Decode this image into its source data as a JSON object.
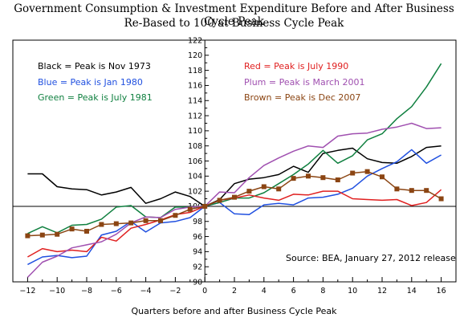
{
  "chart_data": {
    "type": "line",
    "title": "Government Consumption & Investment Expenditure Before and After Business Cycle Peak",
    "subtitle": "Re-Based to 100 at Business Cycle Peak",
    "xlabel": "Quarters before and after Business Cycle Peak",
    "ylabel": "",
    "xlim": [
      -13,
      17
    ],
    "ylim": [
      90,
      122
    ],
    "x_ticks": [
      -12,
      -10,
      -8,
      -6,
      -4,
      -2,
      0,
      2,
      4,
      6,
      8,
      10,
      12,
      14,
      16
    ],
    "y_ticks": [
      90,
      92,
      94,
      96,
      98,
      100,
      102,
      104,
      106,
      108,
      110,
      112,
      114,
      116,
      118,
      120,
      122
    ],
    "grid": false,
    "annotations": [
      {
        "id": "black",
        "text": "Black = Peak is Nov 1973",
        "color": "#000000"
      },
      {
        "id": "blue",
        "text": "Blue = Peak is Jan 1980",
        "color": "#2050e0"
      },
      {
        "id": "green",
        "text": "Green = Peak is July 1981",
        "color": "#108040"
      },
      {
        "id": "red",
        "text": "Red = Peak is July 1990",
        "color": "#e02020"
      },
      {
        "id": "plum",
        "text": "Plum = Peak is March 2001",
        "color": "#a050b0"
      },
      {
        "id": "brown",
        "text": "Brown = Peak is Dec 2007",
        "color": "#8b4513"
      },
      {
        "id": "source",
        "text": "Source:  BEA, January 27, 2012 release",
        "color": "#000000"
      }
    ],
    "series": [
      {
        "key": "black",
        "color": "#000000",
        "marker": false,
        "x": [
          -12,
          -11,
          -10,
          -9,
          -8,
          -7,
          -6,
          -5,
          -4,
          -3,
          -2,
          -1,
          0,
          1,
          2,
          3,
          4,
          5,
          6,
          7,
          8,
          9,
          10,
          11,
          12,
          13,
          14,
          15,
          16
        ],
        "values": [
          104.3,
          104.3,
          102.6,
          102.3,
          102.2,
          101.5,
          101.9,
          102.5,
          100.4,
          101.0,
          101.9,
          101.3,
          100.0,
          100.9,
          103.0,
          103.6,
          103.8,
          104.2,
          105.3,
          104.5,
          107.0,
          107.4,
          107.7,
          106.3,
          105.8,
          105.7,
          106.6,
          107.8,
          108.0
        ]
      },
      {
        "key": "blue",
        "color": "#2050e0",
        "marker": false,
        "x": [
          -12,
          -11,
          -10,
          -9,
          -8,
          -7,
          -6,
          -5,
          -4,
          -3,
          -2,
          -1,
          0,
          1,
          2,
          3,
          4,
          5,
          6,
          7,
          8,
          9,
          10,
          11,
          12,
          13,
          14,
          15,
          16
        ],
        "values": [
          92.3,
          93.3,
          93.5,
          93.2,
          93.4,
          96.2,
          96.7,
          98.0,
          96.6,
          97.8,
          98.0,
          98.5,
          100.0,
          100.5,
          99.0,
          98.9,
          100.2,
          100.4,
          100.2,
          101.1,
          101.2,
          101.6,
          102.4,
          104.0,
          105.0,
          105.9,
          107.5,
          105.7,
          106.8
        ]
      },
      {
        "key": "green",
        "color": "#108040",
        "marker": false,
        "x": [
          -12,
          -11,
          -10,
          -9,
          -8,
          -7,
          -6,
          -5,
          -4,
          -3,
          -2,
          -1,
          0,
          1,
          2,
          3,
          4,
          5,
          6,
          7,
          8,
          9,
          10,
          11,
          12,
          13,
          14,
          15,
          16
        ],
        "values": [
          96.4,
          97.3,
          96.5,
          97.5,
          97.6,
          98.3,
          99.9,
          100.1,
          98.6,
          98.5,
          99.9,
          99.9,
          100.0,
          100.5,
          101.1,
          101.1,
          101.8,
          103.0,
          104.2,
          105.6,
          107.4,
          105.7,
          106.7,
          108.8,
          109.6,
          111.6,
          113.2,
          115.8,
          118.9
        ]
      },
      {
        "key": "red",
        "color": "#e02020",
        "marker": false,
        "x": [
          -12,
          -11,
          -10,
          -9,
          -8,
          -7,
          -6,
          -5,
          -4,
          -3,
          -2,
          -1,
          0,
          1,
          2,
          3,
          4,
          5,
          6,
          7,
          8,
          9,
          10,
          11,
          12,
          13,
          14,
          15,
          16
        ],
        "values": [
          93.3,
          94.4,
          94.0,
          94.2,
          94.0,
          95.9,
          95.4,
          97.1,
          97.6,
          98.2,
          98.9,
          99.2,
          100.0,
          100.8,
          101.1,
          101.5,
          101.1,
          100.8,
          101.6,
          101.5,
          102.0,
          102.0,
          101.0,
          100.9,
          100.8,
          100.9,
          100.1,
          100.5,
          102.2
        ]
      },
      {
        "key": "plum",
        "color": "#a050b0",
        "marker": false,
        "x": [
          -12,
          -11,
          -10,
          -9,
          -8,
          -7,
          -6,
          -5,
          -4,
          -3,
          -2,
          -1,
          0,
          1,
          2,
          3,
          4,
          5,
          6,
          7,
          8,
          9,
          10,
          11,
          12,
          13,
          14,
          15,
          16
        ],
        "values": [
          90.6,
          92.6,
          93.4,
          94.5,
          94.9,
          95.3,
          96.3,
          97.8,
          98.6,
          98.5,
          99.6,
          99.9,
          100.0,
          101.9,
          101.8,
          103.8,
          105.4,
          106.4,
          107.3,
          108.0,
          107.8,
          109.3,
          109.6,
          109.7,
          110.2,
          110.5,
          111.0,
          110.3,
          110.4
        ]
      },
      {
        "key": "brown",
        "color": "#8b4513",
        "marker": true,
        "x": [
          -12,
          -11,
          -10,
          -9,
          -8,
          -7,
          -6,
          -5,
          -4,
          -3,
          -2,
          -1,
          0,
          1,
          2,
          3,
          4,
          5,
          6,
          7,
          8,
          9,
          10,
          11,
          12,
          13,
          14,
          15,
          16
        ],
        "values": [
          96.1,
          96.2,
          96.3,
          97.0,
          96.7,
          97.6,
          97.7,
          97.8,
          98.1,
          98.1,
          98.8,
          99.6,
          100.0,
          100.8,
          101.2,
          102.0,
          102.6,
          102.3,
          103.7,
          104.0,
          103.8,
          103.5,
          104.4,
          104.6,
          103.9,
          102.3,
          102.1,
          102.1,
          101.0
        ]
      }
    ]
  }
}
